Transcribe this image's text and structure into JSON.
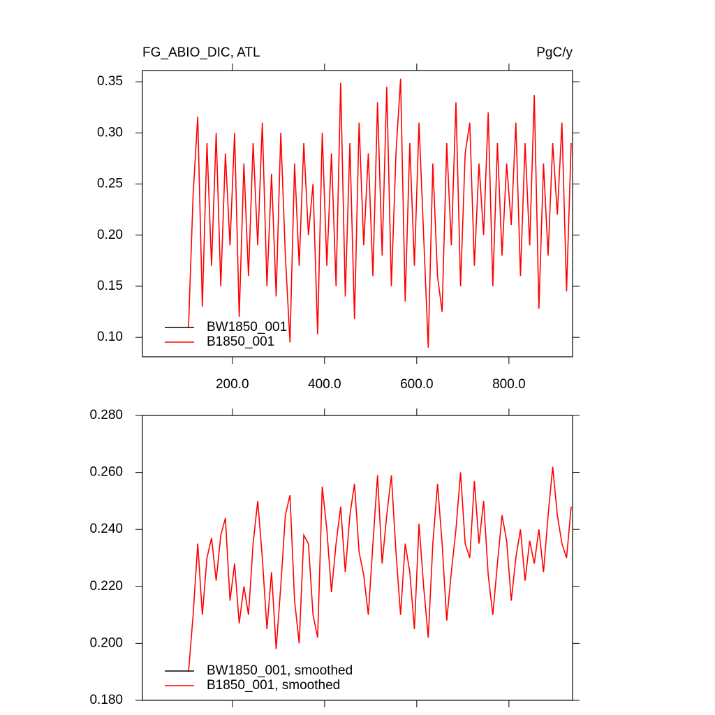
{
  "chart_data": [
    {
      "type": "line",
      "title": "FG_ABIO_DIC, ATL",
      "units": "PgC/y",
      "x": [
        105,
        115,
        125,
        135,
        145,
        155,
        165,
        175,
        185,
        195,
        205,
        215,
        225,
        235,
        245,
        255,
        265,
        275,
        285,
        295,
        305,
        315,
        325,
        335,
        345,
        355,
        365,
        375,
        385,
        395,
        405,
        415,
        425,
        435,
        445,
        455,
        465,
        475,
        485,
        495,
        505,
        515,
        525,
        535,
        545,
        555,
        565,
        575,
        585,
        595,
        605,
        615,
        625,
        635,
        645,
        655,
        665,
        675,
        685,
        695,
        705,
        715,
        725,
        735,
        745,
        755,
        765,
        775,
        785,
        795,
        805,
        815,
        825,
        835,
        845,
        855,
        865,
        875,
        885,
        895,
        905,
        915,
        925,
        935
      ],
      "series": [
        {
          "name": "BW1850_001",
          "color": "#000000",
          "values": [
            null,
            null,
            null,
            null,
            null,
            null,
            null,
            null,
            null,
            null,
            null,
            null,
            null,
            null,
            null,
            null,
            null,
            null,
            null,
            null,
            null,
            null,
            null,
            null,
            null,
            null,
            null,
            null,
            null,
            null,
            null,
            null,
            null,
            null,
            null,
            null,
            null,
            null,
            null,
            null,
            null,
            null,
            null,
            null,
            null,
            null,
            null,
            null,
            null,
            null,
            null,
            null,
            null,
            null,
            null,
            null,
            null,
            null,
            null,
            null,
            null,
            null,
            null,
            null,
            null,
            null,
            null,
            null,
            null,
            null,
            null,
            null,
            null,
            null,
            null,
            null,
            null,
            null,
            null,
            null,
            null,
            null,
            null,
            null
          ]
        },
        {
          "name": "B1850_001",
          "color": "#ff0000",
          "values": [
            0.11,
            0.24,
            0.316,
            0.13,
            0.29,
            0.17,
            0.3,
            0.15,
            0.28,
            0.19,
            0.3,
            0.12,
            0.27,
            0.16,
            0.29,
            0.19,
            0.31,
            0.15,
            0.26,
            0.14,
            0.3,
            0.18,
            0.095,
            0.27,
            0.17,
            0.29,
            0.2,
            0.25,
            0.103,
            0.3,
            0.17,
            0.28,
            0.15,
            0.349,
            0.14,
            0.29,
            0.118,
            0.31,
            0.19,
            0.28,
            0.16,
            0.33,
            0.18,
            0.345,
            0.15,
            0.28,
            0.353,
            0.135,
            0.29,
            0.17,
            0.31,
            0.2,
            0.09,
            0.27,
            0.16,
            0.125,
            0.29,
            0.19,
            0.33,
            0.15,
            0.28,
            0.31,
            0.17,
            0.27,
            0.2,
            0.32,
            0.15,
            0.29,
            0.18,
            0.27,
            0.21,
            0.31,
            0.16,
            0.29,
            0.19,
            0.337,
            0.128,
            0.27,
            0.18,
            0.29,
            0.22,
            0.31,
            0.145,
            0.29
          ]
        }
      ],
      "xlim": [
        5,
        938
      ],
      "xticks": [
        {
          "value": 200,
          "label": "200.0"
        },
        {
          "value": 400,
          "label": "400.0"
        },
        {
          "value": 600,
          "label": "600.0"
        },
        {
          "value": 800,
          "label": "800.0"
        }
      ],
      "ylim": [
        0.081,
        0.361
      ],
      "yticks": [
        {
          "value": 0.1,
          "label": "0.10"
        },
        0.15,
        {
          "value": 0.2,
          "label": "0.20"
        },
        0.25,
        {
          "value": 0.3,
          "label": "0.30"
        },
        0.35
      ],
      "legend": "lower left"
    },
    {
      "type": "line",
      "x": [
        105,
        115,
        125,
        135,
        145,
        155,
        165,
        175,
        185,
        195,
        205,
        215,
        225,
        235,
        245,
        255,
        265,
        275,
        285,
        295,
        305,
        315,
        325,
        335,
        345,
        355,
        365,
        375,
        385,
        395,
        405,
        415,
        425,
        435,
        445,
        455,
        465,
        475,
        485,
        495,
        505,
        515,
        525,
        535,
        545,
        555,
        565,
        575,
        585,
        595,
        605,
        615,
        625,
        635,
        645,
        655,
        665,
        675,
        685,
        695,
        705,
        715,
        725,
        735,
        745,
        755,
        765,
        775,
        785,
        795,
        805,
        815,
        825,
        835,
        845,
        855,
        865,
        875,
        885,
        895,
        905,
        915,
        925,
        935
      ],
      "series": [
        {
          "name": "BW1850_001, smoothed",
          "color": "#000000",
          "values": [
            null,
            null,
            null,
            null,
            null,
            null,
            null,
            null,
            null,
            null,
            null,
            null,
            null,
            null,
            null,
            null,
            null,
            null,
            null,
            null,
            null,
            null,
            null,
            null,
            null,
            null,
            null,
            null,
            null,
            null,
            null,
            null,
            null,
            null,
            null,
            null,
            null,
            null,
            null,
            null,
            null,
            null,
            null,
            null,
            null,
            null,
            null,
            null,
            null,
            null,
            null,
            null,
            null,
            null,
            null,
            null,
            null,
            null,
            null,
            null,
            null,
            null,
            null,
            null,
            null,
            null,
            null,
            null,
            null,
            null,
            null,
            null,
            null,
            null,
            null,
            null,
            null,
            null,
            null,
            null,
            null,
            null,
            null,
            null
          ]
        },
        {
          "name": "B1850_001, smoothed",
          "color": "#ff0000",
          "values": [
            0.19,
            0.21,
            0.235,
            0.21,
            0.23,
            0.237,
            0.222,
            0.238,
            0.244,
            0.215,
            0.228,
            0.207,
            0.22,
            0.21,
            0.235,
            0.25,
            0.23,
            0.205,
            0.225,
            0.198,
            0.22,
            0.245,
            0.252,
            0.215,
            0.2,
            0.238,
            0.235,
            0.21,
            0.202,
            0.255,
            0.24,
            0.218,
            0.235,
            0.248,
            0.225,
            0.245,
            0.256,
            0.232,
            0.224,
            0.21,
            0.235,
            0.259,
            0.228,
            0.245,
            0.259,
            0.232,
            0.21,
            0.235,
            0.225,
            0.205,
            0.242,
            0.22,
            0.202,
            0.235,
            0.256,
            0.235,
            0.208,
            0.225,
            0.24,
            0.26,
            0.235,
            0.23,
            0.257,
            0.235,
            0.25,
            0.224,
            0.21,
            0.228,
            0.245,
            0.236,
            0.215,
            0.23,
            0.24,
            0.222,
            0.236,
            0.228,
            0.24,
            0.225,
            0.245,
            0.262,
            0.245,
            0.235,
            0.23,
            0.248
          ]
        }
      ],
      "xlim": [
        5,
        938
      ],
      "xticks": [
        200,
        400,
        600,
        800
      ],
      "ylim": [
        0.18,
        0.28
      ],
      "yticks": [
        {
          "value": 0.18,
          "label": "0.180"
        },
        {
          "value": 0.2,
          "label": "0.200"
        },
        {
          "value": 0.22,
          "label": "0.220"
        },
        {
          "value": 0.24,
          "label": "0.240"
        },
        {
          "value": 0.26,
          "label": "0.260"
        },
        {
          "value": 0.28,
          "label": "0.280"
        }
      ],
      "legend": "lower left"
    }
  ]
}
